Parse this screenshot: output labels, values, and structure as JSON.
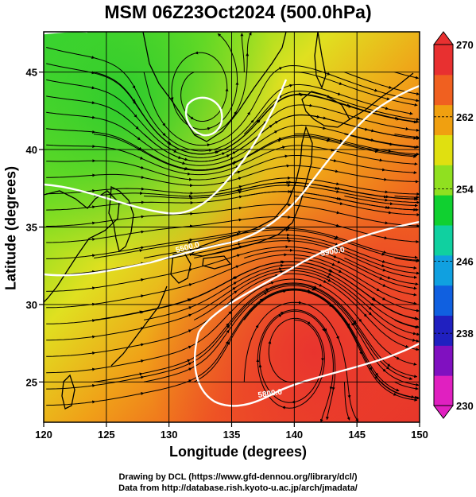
{
  "title": "MSM 06Z23Oct2024 (500.0hPa)",
  "axes": {
    "xlabel": "Longitude (degrees)",
    "ylabel": "Latitude  (degrees)",
    "x_ticks": [
      120,
      125,
      130,
      135,
      140,
      145,
      150
    ],
    "y_ticks": [
      25,
      30,
      35,
      40,
      45
    ],
    "x_range": [
      120,
      150
    ],
    "y_range": [
      22.4,
      47.6
    ]
  },
  "colorbar": {
    "min": 230,
    "max": 270,
    "tick_labels": [
      "270",
      "262",
      "254",
      "246",
      "238",
      "230"
    ],
    "colors_bottom_to_top": [
      "#e020c0",
      "#8010c0",
      "#2020c0",
      "#1060e0",
      "#10a0e0",
      "#10d0a0",
      "#10d030",
      "#90e020",
      "#e0e010",
      "#f0a010",
      "#f06020",
      "#e83030"
    ]
  },
  "contours": {
    "labels": [
      "5500.0",
      "5900.0",
      "5800.0"
    ],
    "color": "#ffffff"
  },
  "credits": {
    "line1": "Drawing by DCL (https://www.gfd-dennou.org/library/dcl/)",
    "line2": "Data from http://database.rish.kyoto-u.ac.jp/arch/jmadata/"
  }
}
